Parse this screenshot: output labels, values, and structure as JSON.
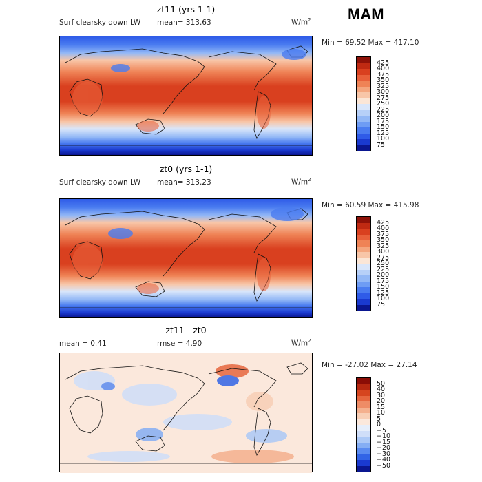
{
  "season": "MAM",
  "scale_colors": {
    "abs": [
      "#0a1690",
      "#1a3ad0",
      "#2f5be8",
      "#4a7cf0",
      "#6e9cf4",
      "#93b8f6",
      "#b7d0f8",
      "#d9e6fa",
      "#fbe6d6",
      "#f8c6a8",
      "#f4a67e",
      "#ef8356",
      "#e8603a",
      "#d9401f",
      "#bf2a12",
      "#8e1208"
    ],
    "diff": [
      "#0a1690",
      "#1a3ad0",
      "#3264e6",
      "#5a8bf0",
      "#85aef4",
      "#acc9f7",
      "#cfdef9",
      "#e6eefb",
      "#fbe8dc",
      "#f8cfb6",
      "#f4b08e",
      "#ee8c66",
      "#e6673f",
      "#d6451f",
      "#b52810",
      "#8a0d06"
    ]
  },
  "panels": [
    {
      "id": "zt11",
      "title": "zt11 (yrs 1-1)",
      "subtitle": "Surf clearsky down LW",
      "stat": "mean= 313.63",
      "units": "W/m",
      "units_sup": "2",
      "minmax": "Min =  69.52 Max = 417.10",
      "scale": "abs",
      "ticks": [
        "425",
        "400",
        "375",
        "350",
        "325",
        "300",
        "275",
        "250",
        "225",
        "200",
        "175",
        "150",
        "125",
        "100",
        "75"
      ]
    },
    {
      "id": "zt0",
      "title": "zt0 (yrs 1-1)",
      "subtitle": "Surf clearsky down LW",
      "stat": "mean= 313.23",
      "units": "W/m",
      "units_sup": "2",
      "minmax": "Min =  60.59 Max = 415.98",
      "scale": "abs",
      "ticks": [
        "425",
        "400",
        "375",
        "350",
        "325",
        "300",
        "275",
        "250",
        "225",
        "200",
        "175",
        "150",
        "125",
        "100",
        "75"
      ]
    },
    {
      "id": "diff",
      "title": "zt11 - zt0",
      "subtitle": "mean =    0.41",
      "stat": "rmse =    4.90",
      "units": "W/m",
      "units_sup": "2",
      "minmax": "Min = -27.02 Max =  27.14",
      "scale": "diff",
      "ticks": [
        "50",
        "40",
        "30",
        "20",
        "15",
        "10",
        "5",
        "0",
        "−5",
        "−10",
        "−15",
        "−20",
        "−30",
        "−40",
        "−50"
      ]
    }
  ]
}
